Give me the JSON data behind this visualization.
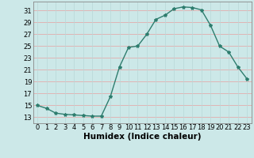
{
  "x": [
    0,
    1,
    2,
    3,
    4,
    5,
    6,
    7,
    8,
    9,
    10,
    11,
    12,
    13,
    14,
    15,
    16,
    17,
    18,
    19,
    20,
    21,
    22,
    23
  ],
  "y": [
    15,
    14.5,
    13.7,
    13.5,
    13.4,
    13.3,
    13.2,
    13.2,
    16.5,
    21.5,
    24.8,
    25.0,
    27.0,
    29.5,
    30.2,
    31.3,
    31.6,
    31.5,
    31.1,
    28.5,
    25.0,
    24.0,
    21.5,
    19.5
  ],
  "line_color": "#2e7d6e",
  "marker": "*",
  "marker_size": 3,
  "bg_color": "#cce8e8",
  "grid_color_h": "#e8a0a0",
  "grid_color_v": "#b8d8d8",
  "xlabel": "Humidex (Indice chaleur)",
  "yticks": [
    13,
    15,
    17,
    19,
    21,
    23,
    25,
    27,
    29,
    31
  ],
  "xticks": [
    0,
    1,
    2,
    3,
    4,
    5,
    6,
    7,
    8,
    9,
    10,
    11,
    12,
    13,
    14,
    15,
    16,
    17,
    18,
    19,
    20,
    21,
    22,
    23
  ],
  "ylim": [
    12.0,
    32.5
  ],
  "xlim": [
    -0.5,
    23.5
  ],
  "xlabel_fontsize": 7.5,
  "tick_fontsize": 6,
  "line_width": 1.0
}
